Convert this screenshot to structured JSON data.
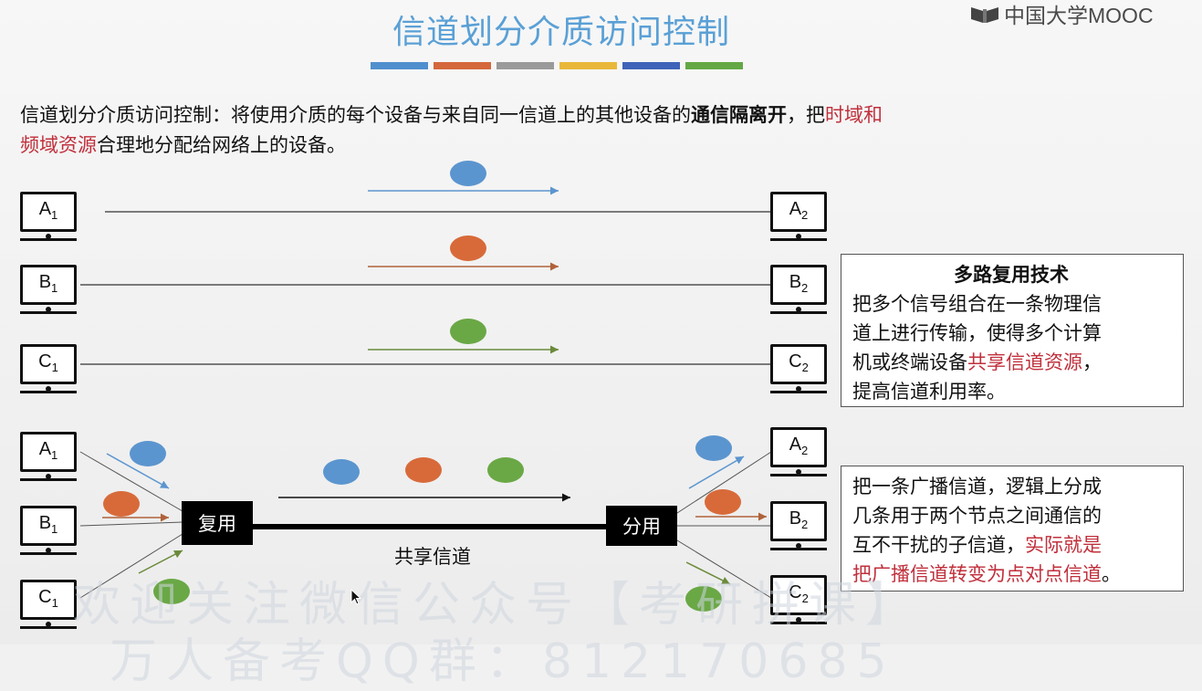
{
  "logo": {
    "text": "中国大学MOOC"
  },
  "title": "信道划分介质访问控制",
  "color_bars": [
    "#4f8fce",
    "#d4673b",
    "#9a9a9a",
    "#e9b73a",
    "#3f63b8",
    "#63a844"
  ],
  "intro": {
    "part1": "信道划分介质访问控制：将使用介质的每个设备与来自同一信道上的其他设备的",
    "bold": "通信隔离开",
    "part2": "，把",
    "red1": "时域和",
    "red2": "频域资源",
    "part3": "合理地分配给网络上的设备。"
  },
  "computers": {
    "top_left": [
      {
        "name": "A",
        "sub": "1"
      },
      {
        "name": "B",
        "sub": "1"
      },
      {
        "name": "C",
        "sub": "1"
      }
    ],
    "top_right": [
      {
        "name": "A",
        "sub": "2"
      },
      {
        "name": "B",
        "sub": "2"
      },
      {
        "name": "C",
        "sub": "2"
      }
    ],
    "bottom_left": [
      {
        "name": "A",
        "sub": "1"
      },
      {
        "name": "B",
        "sub": "1"
      },
      {
        "name": "C",
        "sub": "1"
      }
    ],
    "bottom_right": [
      {
        "name": "A",
        "sub": "2"
      },
      {
        "name": "B",
        "sub": "2"
      },
      {
        "name": "C",
        "sub": "2"
      }
    ]
  },
  "signal_colors": {
    "blue": "#5b95cf",
    "orange": "#d86a3a",
    "green": "#6aa846"
  },
  "mux_label": "复用",
  "demux_label": "分用",
  "shared_channel_label": "共享信道",
  "box1": {
    "heading": "多路复用技术",
    "line1": "把多个信号组合在一条物理信",
    "line2": "道上进行传输，使得多个计算",
    "line3a": "机或终端设备",
    "line3red": "共享信道资源",
    "line3b": "，",
    "line4": "提高信道利用率。"
  },
  "box2": {
    "line1": "把一条广播信道，逻辑上分成",
    "line2": "几条用于两个节点之间通信的",
    "line3a": "互不干扰的子信道，",
    "line3red": "实际就是",
    "line4red": "把广播信道转变为点对点信道",
    "line4b": "。"
  },
  "watermark": {
    "line1": "欢迎关注微信公众号【考研拼课】",
    "line2": "万人备考QQ群：812170685"
  }
}
